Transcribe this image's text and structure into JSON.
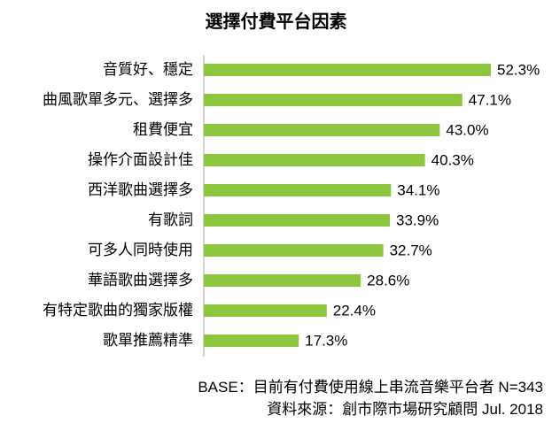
{
  "chart_data": {
    "type": "bar",
    "orientation": "horizontal",
    "title": "選擇付費平台因素",
    "categories": [
      "音質好、穩定",
      "曲風歌單多元、選擇多",
      "租費便宜",
      "操作介面設計佳",
      "西洋歌曲選擇多",
      "有歌詞",
      "可多人同時使用",
      "華語歌曲選擇多",
      "有特定歌曲的獨家版權",
      "歌單推薦精準"
    ],
    "values": [
      52.3,
      47.1,
      43.0,
      40.3,
      34.1,
      33.9,
      32.7,
      28.6,
      22.4,
      17.3
    ],
    "value_labels": [
      "52.3%",
      "47.1%",
      "43.0%",
      "40.3%",
      "34.1%",
      "33.9%",
      "32.7%",
      "28.6%",
      "22.4%",
      "17.3%"
    ],
    "unit": "%",
    "bar_color": "#8dc63f",
    "xlim": [
      0,
      100
    ],
    "grid": false,
    "legend": "none"
  },
  "notes": {
    "base": "BASE：目前有付費使用線上串流音樂平台者 N=343",
    "source": "資料來源：創市際市場研究顧問 Jul. 2018"
  }
}
